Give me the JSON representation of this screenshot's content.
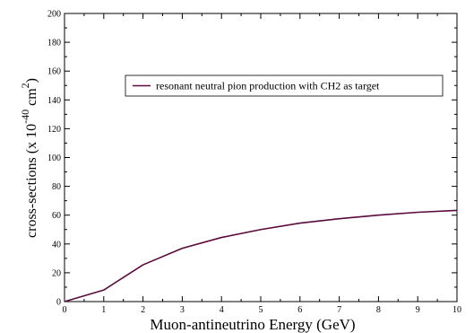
{
  "chart_data": {
    "type": "line",
    "xlabel": "Muon-antineutrino Energy (GeV)",
    "ylabel": {
      "prefix": "cross-sections (x 10",
      "exp1": "-40",
      "mid": " cm",
      "exp2": "2",
      "suffix": ")"
    },
    "xlim": [
      0,
      10
    ],
    "ylim": [
      0,
      200
    ],
    "xticks": [
      0,
      1,
      2,
      3,
      4,
      5,
      6,
      7,
      8,
      9,
      10
    ],
    "yticks": [
      0,
      20,
      40,
      60,
      80,
      100,
      120,
      140,
      160,
      180,
      200
    ],
    "grid": false,
    "legend_position": "top-right",
    "series": [
      {
        "name": "resonant neutral pion production with CH2 as target",
        "color": "#5a0a3c",
        "x": [
          0,
          1,
          2,
          3,
          4,
          5,
          6,
          7,
          8,
          9,
          10
        ],
        "y": [
          0,
          8,
          25.5,
          37,
          44.5,
          50,
          54.5,
          57.5,
          60,
          62,
          63.3
        ]
      }
    ]
  }
}
